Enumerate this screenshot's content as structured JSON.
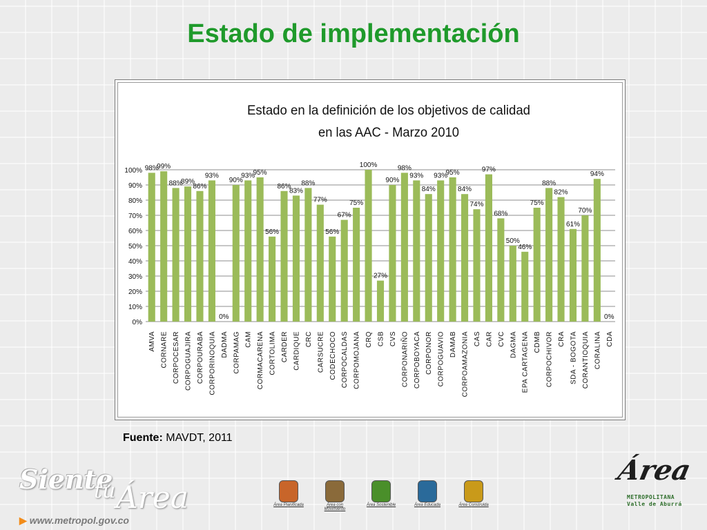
{
  "slide": {
    "title": "Estado de implementación",
    "source_label": "Fuente:",
    "source_value": "MAVDT, 2011",
    "website": "www.metropol.gov.co",
    "footer_logo": {
      "word1": "Siente",
      "word2": "tu",
      "word3": "Área"
    },
    "corner_logo": {
      "signature": "Área",
      "line1": "METROPOLITANA",
      "line2": "Valle de Aburrá"
    },
    "footer_icons": [
      {
        "label": "Área Planificada",
        "icon": "planned-area-icon",
        "color": "#c8652a"
      },
      {
        "label": "Área con Movimiento",
        "icon": "mobility-area-icon",
        "color": "#8a6a3a"
      },
      {
        "label": "Área Sostenible",
        "icon": "sustainable-area-icon",
        "color": "#4a8f2a"
      },
      {
        "label": "Área Educada",
        "icon": "educated-area-icon",
        "color": "#2a6a9a"
      },
      {
        "label": "Área Construida",
        "icon": "built-area-icon",
        "color": "#c99a1a"
      }
    ]
  },
  "chart_data": {
    "type": "bar",
    "title_line1": "Estado en la definición de los objetivos de calidad",
    "title_line2": "en las AAC  - Marzo 2010",
    "xlabel": "",
    "ylabel": "",
    "ylim": [
      0,
      100
    ],
    "yticks": [
      "0%",
      "10%",
      "20%",
      "30%",
      "40%",
      "50%",
      "60%",
      "70%",
      "80%",
      "90%",
      "100%"
    ],
    "grid": true,
    "bar_color": "#9bbb59",
    "categories": [
      "AMVA",
      "CORNARE",
      "CORPOCESAR",
      "CORPOGUAJIRA",
      "CORPOURABA",
      "CORPORINOQUIA",
      "DADMA",
      "CORPAMAG",
      "CAM",
      "CORMACARENA",
      "CORTOLIMA",
      "CARDER",
      "CARDIQUE",
      "CRC",
      "CARSUCRE",
      "CODECHOCO",
      "CORPOCALDAS",
      "CORPOMOJANA",
      "CRQ",
      "CSB",
      "CVS",
      "CORPONARIÑO",
      "CORPOBOYACA",
      "CORPONOR",
      "CORPOGUAVIO",
      "DAMAB",
      "CORPOAMAZONIA",
      "CAS",
      "CAR",
      "CVC",
      "DAGMA",
      "EPA CARTAGENA",
      "CDMB",
      "CORPOCHIVOR",
      "CRA",
      "SDA - BOGOTA",
      "CORANTIOQUIA",
      "CORALINA",
      "CDA"
    ],
    "values": [
      98,
      99,
      88,
      89,
      86,
      93,
      0,
      90,
      93,
      95,
      56,
      86,
      83,
      88,
      77,
      56,
      67,
      75,
      100,
      27,
      90,
      98,
      93,
      84,
      93,
      95,
      84,
      74,
      97,
      68,
      50,
      46,
      75,
      88,
      82,
      61,
      70,
      94,
      0
    ],
    "labels": [
      "98%",
      "99%",
      "88%",
      "89%",
      "86%",
      "93%",
      "0%",
      "90%",
      "93%",
      "95%",
      "56%",
      "86%",
      "83%",
      "88%",
      "77%",
      "56%",
      "67%",
      "75%",
      "100%",
      "27%",
      "90%",
      "98%",
      "93%",
      "84%",
      "93%",
      "95%",
      "84%",
      "74%",
      "97%",
      "68%",
      "50%",
      "46%",
      "75%",
      "88%",
      "82%",
      "61%",
      "70%",
      "94%",
      "0%"
    ]
  }
}
